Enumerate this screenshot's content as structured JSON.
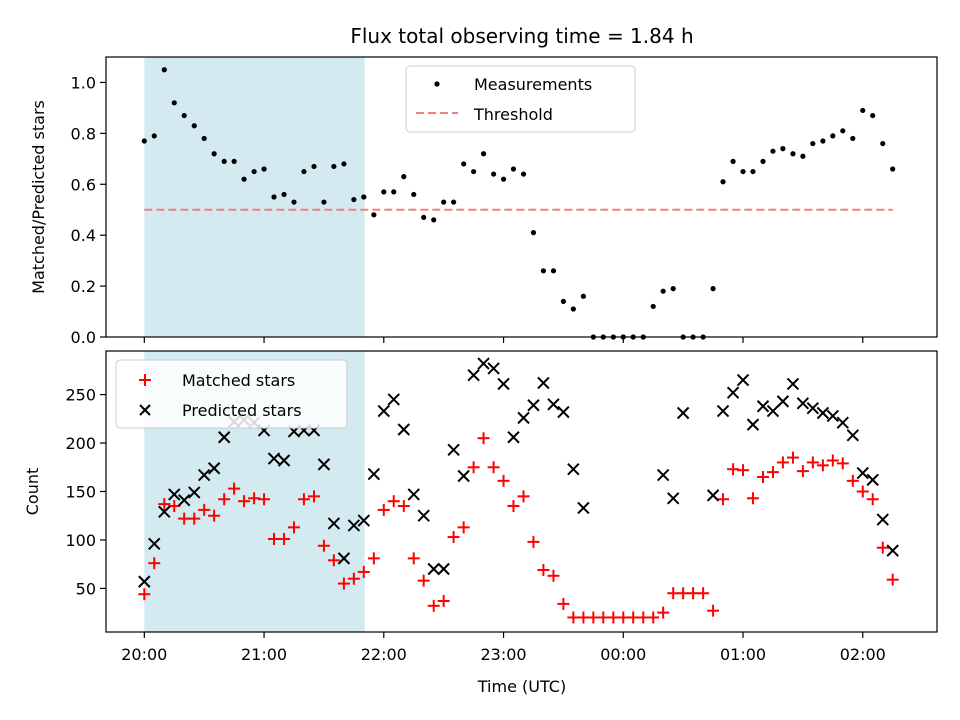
{
  "chart_data": [
    {
      "type": "scatter",
      "title": "Flux total observing time = 1.84 h",
      "ylabel": "Matched/Predicted stars",
      "ylim": [
        0,
        1.1
      ],
      "yticks": [
        0.0,
        0.2,
        0.4,
        0.6,
        0.8,
        1.0
      ],
      "ytick_labels": [
        "0.0",
        "0.2",
        "0.4",
        "0.6",
        "0.8",
        "1.0"
      ],
      "xlim_hours": [
        -0.32,
        6.62
      ],
      "shaded_span_hours": [
        0,
        1.84
      ],
      "shaded_color": "#d3eaf0",
      "legend_position": "top-center",
      "series": [
        {
          "name": "Measurements",
          "marker": "dot",
          "color": "#000000",
          "x_hours": [
            0,
            0.083,
            0.167,
            0.25,
            0.333,
            0.417,
            0.5,
            0.583,
            0.667,
            0.75,
            0.833,
            0.917,
            1.0,
            1.083,
            1.167,
            1.25,
            1.333,
            1.417,
            1.5,
            1.583,
            1.667,
            1.75,
            1.833,
            1.917,
            2.0,
            2.083,
            2.167,
            2.25,
            2.333,
            2.417,
            2.5,
            2.583,
            2.667,
            2.75,
            2.833,
            2.917,
            3.0,
            3.083,
            3.167,
            3.25,
            3.333,
            3.417,
            3.5,
            3.583,
            3.667,
            3.75,
            3.833,
            3.917,
            4.0,
            4.083,
            4.167,
            4.25,
            4.333,
            4.417,
            4.5,
            4.583,
            4.667,
            4.75,
            4.833,
            4.917,
            5.0,
            5.083,
            5.167,
            5.25,
            5.333,
            5.417,
            5.5,
            5.583,
            5.667,
            5.75,
            5.833,
            5.917,
            6.0,
            6.083,
            6.167,
            6.25
          ],
          "values": [
            0.77,
            0.79,
            1.05,
            0.92,
            0.87,
            0.83,
            0.78,
            0.72,
            0.69,
            0.69,
            0.62,
            0.65,
            0.66,
            0.55,
            0.56,
            0.53,
            0.65,
            0.67,
            0.53,
            0.67,
            0.68,
            0.54,
            0.55,
            0.48,
            0.57,
            0.57,
            0.63,
            0.56,
            0.47,
            0.46,
            0.53,
            0.53,
            0.68,
            0.65,
            0.72,
            0.64,
            0.62,
            0.66,
            0.64,
            0.41,
            0.26,
            0.26,
            0.14,
            0.11,
            0.16,
            0.0,
            0.0,
            0.0,
            0.0,
            0.0,
            0.0,
            0.12,
            0.18,
            0.19,
            0.0,
            0.0,
            0.0,
            0.19,
            0.61,
            0.69,
            0.65,
            0.65,
            0.69,
            0.73,
            0.74,
            0.72,
            0.71,
            0.76,
            0.77,
            0.79,
            0.81,
            0.78,
            0.89,
            0.87,
            0.76,
            0.66
          ]
        },
        {
          "name": "Threshold",
          "marker": "dashed-line",
          "color": "#f08080",
          "x_hours": [
            0,
            6.25
          ],
          "values": [
            0.5,
            0.5
          ]
        }
      ]
    },
    {
      "type": "scatter",
      "ylabel": "Count",
      "xlabel": "Time (UTC)",
      "ylim": [
        5,
        295
      ],
      "yticks": [
        50,
        100,
        150,
        200,
        250
      ],
      "ytick_labels": [
        "50",
        "100",
        "150",
        "200",
        "250"
      ],
      "xlim_hours": [
        -0.32,
        6.62
      ],
      "xticks_hours": [
        0,
        1,
        2,
        3,
        4,
        5,
        6
      ],
      "xtick_labels": [
        "20:00",
        "21:00",
        "22:00",
        "23:00",
        "00:00",
        "01:00",
        "02:00"
      ],
      "shaded_span_hours": [
        0,
        1.84
      ],
      "shaded_color": "#d3eaf0",
      "legend_position": "top-left",
      "series": [
        {
          "name": "Matched stars",
          "marker": "plus",
          "color": "#ff0000",
          "x_hours": [
            0,
            0.083,
            0.167,
            0.25,
            0.333,
            0.417,
            0.5,
            0.583,
            0.667,
            0.75,
            0.833,
            0.917,
            1.0,
            1.083,
            1.167,
            1.25,
            1.333,
            1.417,
            1.5,
            1.583,
            1.667,
            1.75,
            1.833,
            1.917,
            2.0,
            2.083,
            2.167,
            2.25,
            2.333,
            2.417,
            2.5,
            2.583,
            2.667,
            2.75,
            2.833,
            2.917,
            3.0,
            3.083,
            3.167,
            3.25,
            3.333,
            3.417,
            3.5,
            3.583,
            3.667,
            3.75,
            3.833,
            3.917,
            4.0,
            4.083,
            4.167,
            4.25,
            4.333,
            4.417,
            4.5,
            4.583,
            4.667,
            4.75,
            4.833,
            4.917,
            5.0,
            5.083,
            5.167,
            5.25,
            5.333,
            5.417,
            5.5,
            5.583,
            5.667,
            5.75,
            5.833,
            5.917,
            6.0,
            6.083,
            6.167,
            6.25
          ],
          "values": [
            44,
            76,
            137,
            135,
            122,
            122,
            131,
            125,
            142,
            153,
            140,
            143,
            142,
            101,
            101,
            113,
            142,
            145,
            94,
            79,
            55,
            60,
            67,
            81,
            131,
            140,
            135,
            81,
            58,
            32,
            37,
            103,
            113,
            175,
            205,
            175,
            161,
            135,
            145,
            98,
            69,
            63,
            34,
            20,
            20,
            20,
            20,
            20,
            20,
            20,
            20,
            20,
            25,
            45,
            45,
            45,
            45,
            27,
            142,
            173,
            172,
            143,
            165,
            170,
            180,
            185,
            171,
            180,
            177,
            182,
            179,
            161,
            150,
            142,
            92,
            59
          ]
        },
        {
          "name": "Predicted stars",
          "marker": "x",
          "color": "#000000",
          "x_hours": [
            0,
            0.083,
            0.167,
            0.25,
            0.333,
            0.417,
            0.5,
            0.583,
            0.667,
            0.75,
            0.833,
            0.917,
            1.0,
            1.083,
            1.167,
            1.25,
            1.333,
            1.417,
            1.5,
            1.583,
            1.667,
            1.75,
            1.833,
            1.917,
            2.0,
            2.083,
            2.167,
            2.25,
            2.333,
            2.417,
            2.5,
            2.583,
            2.667,
            2.75,
            2.833,
            2.917,
            3.0,
            3.083,
            3.167,
            3.25,
            3.333,
            3.417,
            3.5,
            3.583,
            3.667,
            4.333,
            4.417,
            4.5,
            4.75,
            4.833,
            4.917,
            5.0,
            5.083,
            5.167,
            5.25,
            5.333,
            5.417,
            5.5,
            5.583,
            5.667,
            5.75,
            5.833,
            5.917,
            6.0,
            6.083,
            6.167,
            6.25
          ],
          "values": [
            57,
            96,
            129,
            147,
            141,
            149,
            167,
            174,
            206,
            222,
            224,
            221,
            213,
            184,
            182,
            212,
            213,
            213,
            178,
            117,
            81,
            115,
            120,
            168,
            233,
            245,
            214,
            147,
            125,
            70,
            70,
            193,
            166,
            270,
            282,
            277,
            261,
            206,
            226,
            239,
            262,
            240,
            232,
            173,
            133,
            167,
            143,
            231,
            146,
            233,
            252,
            265,
            219,
            238,
            233,
            243,
            261,
            241,
            236,
            231,
            228,
            221,
            208,
            169,
            162,
            121,
            89
          ]
        }
      ]
    }
  ]
}
